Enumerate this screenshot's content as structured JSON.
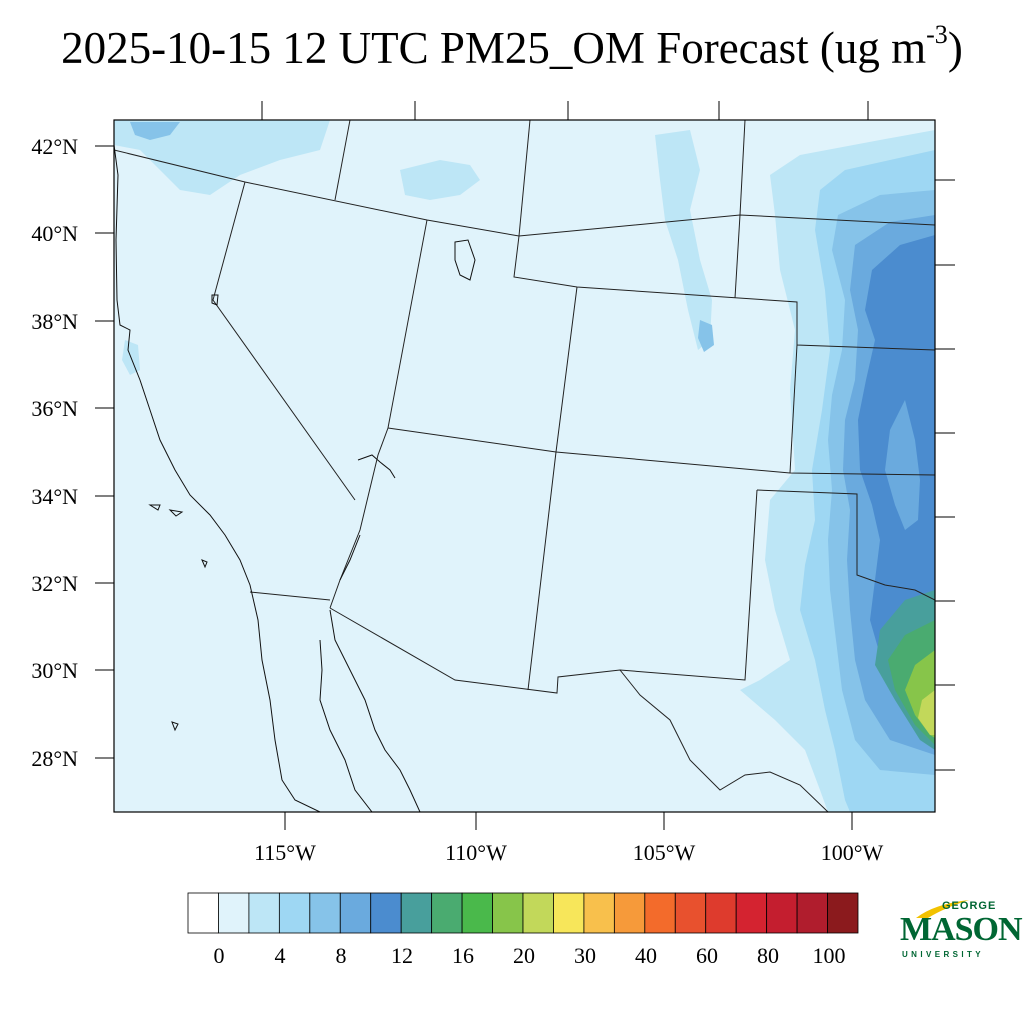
{
  "title": {
    "main": "2025-10-15 12 UTC PM25_OM Forecast (ug m",
    "superscript": "-3",
    "close": ")"
  },
  "map": {
    "lat_labels": [
      "42°N",
      "40°N",
      "38°N",
      "36°N",
      "34°N",
      "32°N",
      "30°N",
      "28°N"
    ],
    "lon_labels": [
      "115°W",
      "110°W",
      "105°W",
      "100°W"
    ],
    "background_color": "#e0f3fb",
    "border_color": "#000000"
  },
  "legend": {
    "colors": [
      "#ffffff",
      "#e0f3fb",
      "#bde6f6",
      "#9ed7f3",
      "#86c3e9",
      "#6aaade",
      "#4b8ccf",
      "#489f9c",
      "#4aab70",
      "#4ab94b",
      "#87c54a",
      "#c2d85a",
      "#f7e65a",
      "#f8c04c",
      "#f69a3a",
      "#f36b2b",
      "#e8512e",
      "#de3b2d",
      "#d42330",
      "#c41e2f",
      "#b01d2d",
      "#8b1a1d"
    ],
    "labels": [
      "0",
      "4",
      "8",
      "12",
      "16",
      "20",
      "30",
      "40",
      "60",
      "80",
      "100"
    ]
  },
  "logo": {
    "top": "GEORGE",
    "main": "MASON",
    "bottom": "UNIVERSITY",
    "color": "#006633",
    "accent": "#f2c200"
  }
}
